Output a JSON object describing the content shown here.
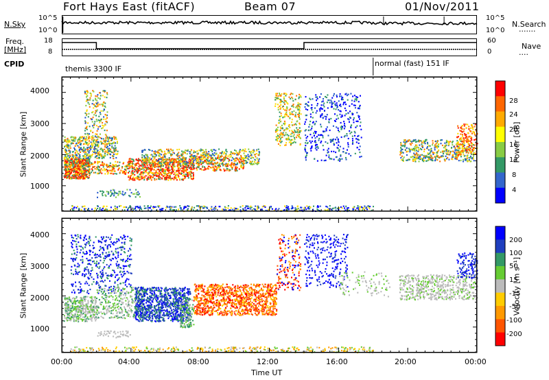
{
  "header": {
    "station": "Fort Hays East (fitACF)",
    "beam": "Beam 07",
    "date": "01/Nov/2011"
  },
  "strips": {
    "nsky_label": "N.Sky",
    "nsearch_label": "N.Search",
    "nsky_ticks": [
      "10^5",
      "10^0"
    ],
    "nsearch_ticks": [
      "10^5",
      "10^0"
    ],
    "freq_label_1": "Freq.",
    "freq_label_2": "[MHz]",
    "freq_ticks": [
      "18",
      "8"
    ],
    "nave_label": "Nave",
    "nave_ticks": [
      "60",
      "0"
    ],
    "cpid_label": "CPID",
    "cpid_segments": [
      "themis 3300 IF",
      "normal (fast) 151 IF"
    ]
  },
  "chart_data": [
    {
      "type": "heatmap",
      "title": "",
      "xlabel": "Time UT",
      "ylabel": "Slant Range [km]",
      "x_ticks": [
        "00:00",
        "04:00",
        "08:00",
        "12:00",
        "16:00",
        "20:00",
        "00:00"
      ],
      "xlim": [
        0,
        24
      ],
      "y_ticks": [
        "1000",
        "2000",
        "3000",
        "4000"
      ],
      "ylim": [
        180,
        4500
      ],
      "colorbar": {
        "label": "Power [dB]",
        "ticks": [
          "28",
          "24",
          "20",
          "16",
          "12",
          "8",
          "4"
        ],
        "colors": [
          "#ff0000",
          "#ff6600",
          "#ffaa00",
          "#ffff00",
          "#88cc44",
          "#339966",
          "#3366cc",
          "#0000ff"
        ]
      }
    },
    {
      "type": "heatmap",
      "title": "",
      "xlabel": "Time UT",
      "ylabel": "Slant Range [km]",
      "x_ticks": [
        "00:00",
        "04:00",
        "08:00",
        "12:00",
        "16:00",
        "20:00",
        "00:00"
      ],
      "xlim": [
        0,
        24
      ],
      "y_ticks": [
        "1000",
        "2000",
        "3000",
        "4000"
      ],
      "ylim": [
        180,
        4500
      ],
      "colorbar": {
        "label": "Velocity [m s⁻¹]",
        "ticks": [
          "200",
          "100",
          "50",
          "15",
          "-15",
          "-50",
          "-100",
          "-200"
        ],
        "colors": [
          "#0000ff",
          "#1f3fbf",
          "#339966",
          "#66cc33",
          "#bbbbbb",
          "#ffcc00",
          "#ff9900",
          "#ff5500",
          "#ff0000"
        ]
      }
    }
  ]
}
